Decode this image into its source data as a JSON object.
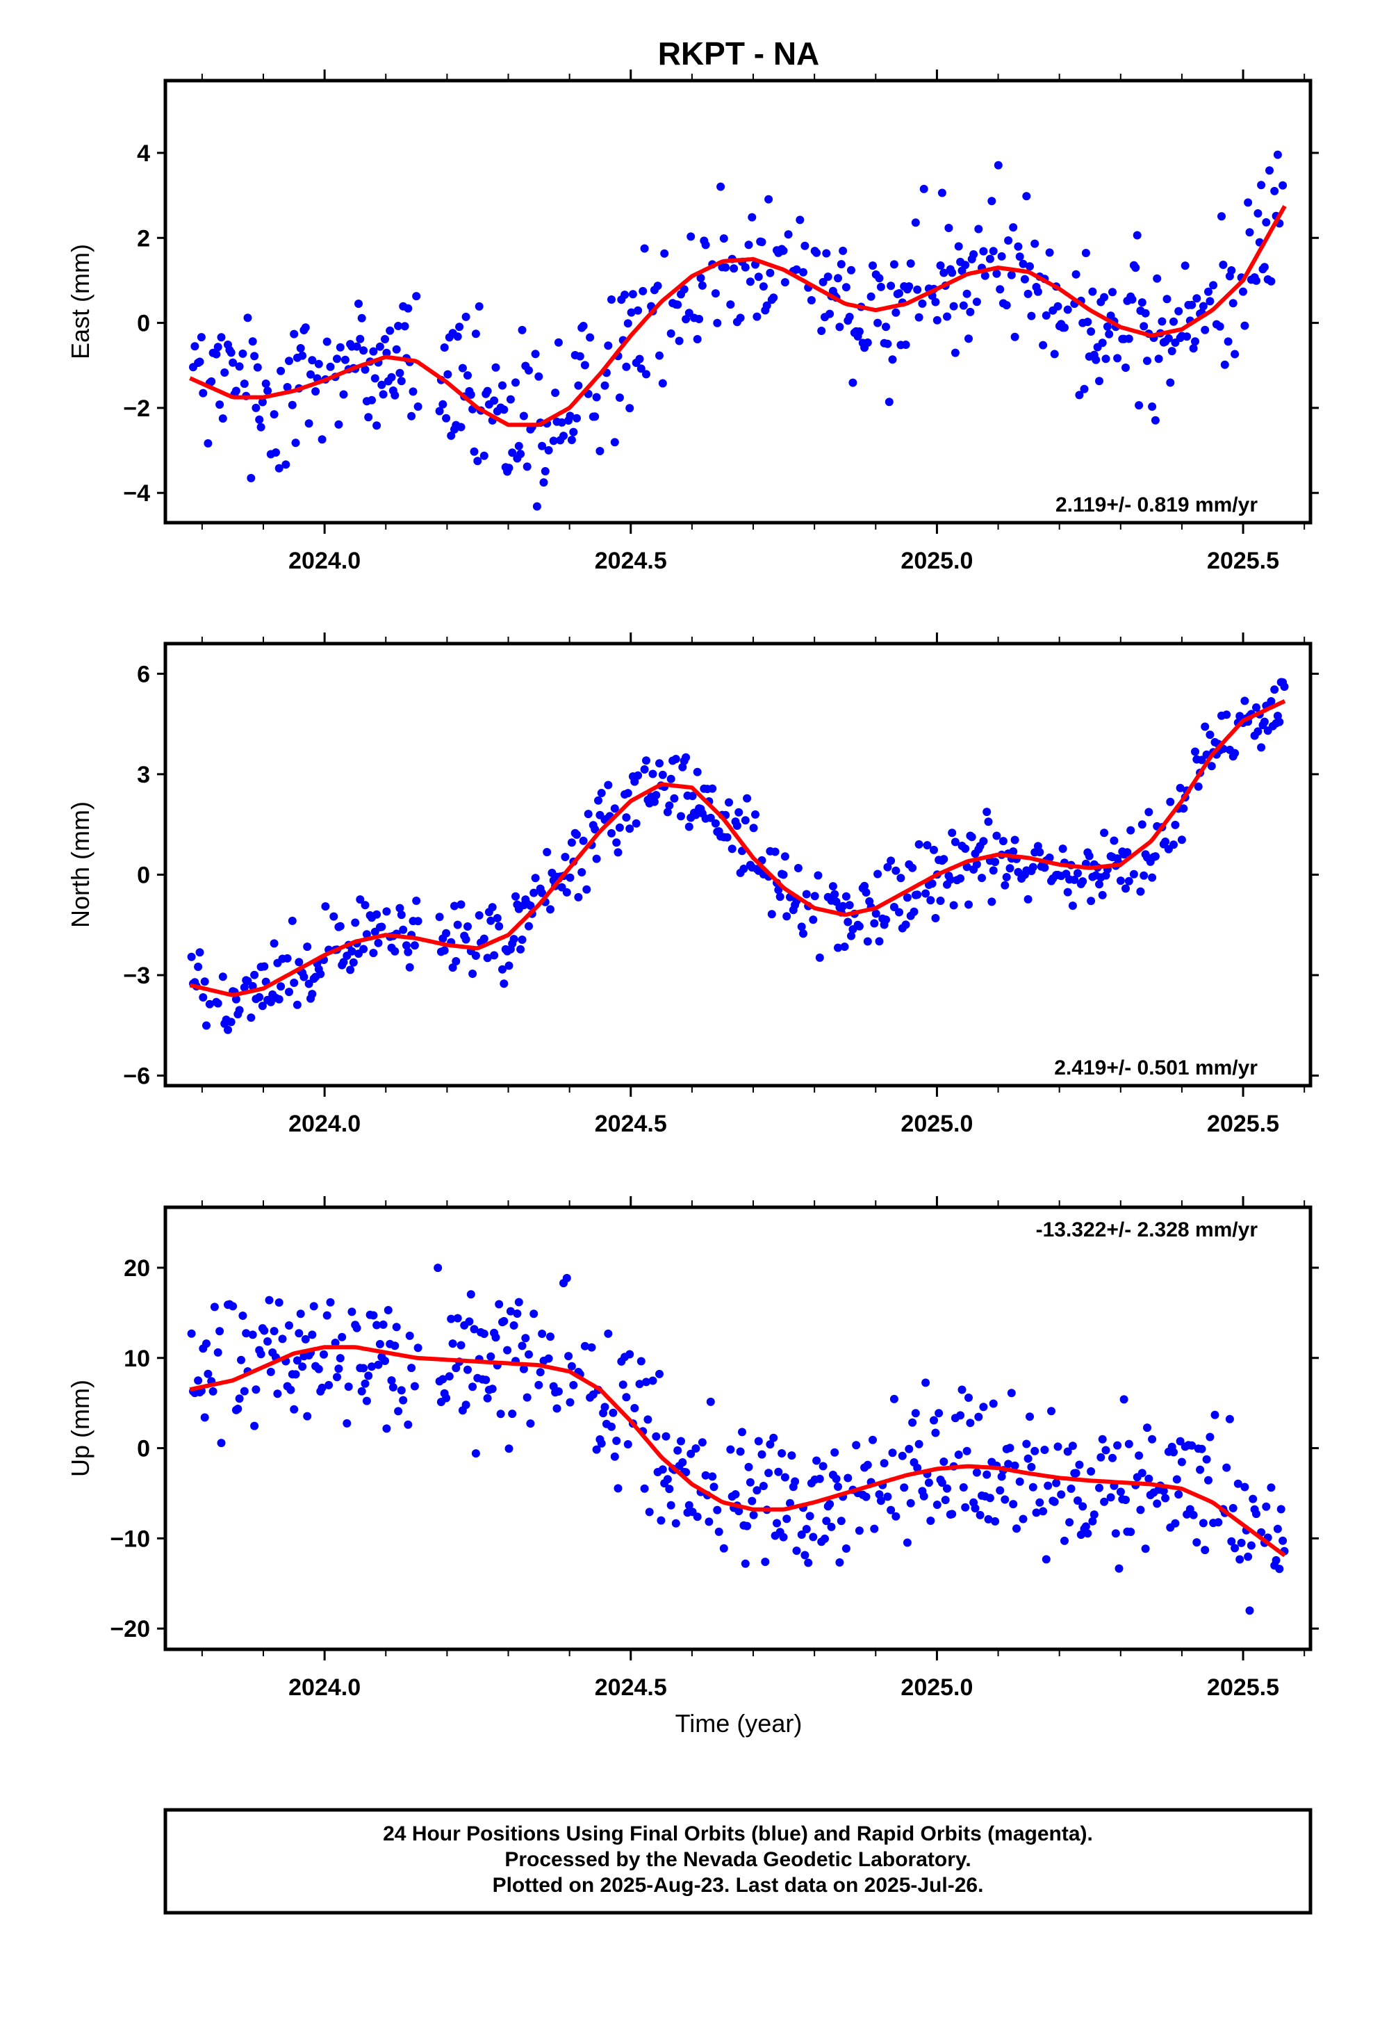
{
  "title": "RKPT - NA",
  "colors": {
    "final_orbits": "#0000ff",
    "fit_curve": "#ff0000",
    "rapid_orbits": "#ff00ff"
  },
  "xaxis": {
    "label": "Time (year)",
    "ticks": [
      "2024.0",
      "2024.5",
      "2025.0",
      "2025.5"
    ]
  },
  "footer": {
    "line1": "24 Hour Positions Using Final Orbits (blue) and Rapid Orbits (magenta).",
    "line2": "Processed by the Nevada Geodetic Laboratory.",
    "line3": "Plotted on 2025-Aug-23. Last data on 2025-Jul-26."
  },
  "chart_data": [
    {
      "type": "scatter",
      "ylabel": "East (mm)",
      "rate_text": "2.119+/- 0.819 mm/yr",
      "xlim": [
        2023.74,
        2025.61
      ],
      "ylim": [
        -4.7,
        5.7
      ],
      "ytick_values": [
        -4,
        -2,
        0,
        2,
        4
      ],
      "ytick_labels": [
        "−4",
        "−2",
        "0",
        "2",
        "4"
      ],
      "xtick_values": [
        2024.0,
        2024.5,
        2025.0,
        2025.5
      ],
      "data_range": [
        2023.78,
        2025.57
      ],
      "noise": 1.1,
      "fit_curve": {
        "x": [
          2023.78,
          2023.85,
          2023.9,
          2023.95,
          2024.0,
          2024.05,
          2024.1,
          2024.15,
          2024.2,
          2024.25,
          2024.3,
          2024.35,
          2024.4,
          2024.45,
          2024.5,
          2024.55,
          2024.6,
          2024.65,
          2024.7,
          2024.75,
          2024.8,
          2024.85,
          2024.9,
          2024.95,
          2025.0,
          2025.05,
          2025.1,
          2025.15,
          2025.2,
          2025.25,
          2025.3,
          2025.35,
          2025.4,
          2025.45,
          2025.5,
          2025.57
        ],
        "y": [
          -1.3,
          -1.75,
          -1.75,
          -1.6,
          -1.35,
          -1.05,
          -0.8,
          -0.9,
          -1.4,
          -2.0,
          -2.4,
          -2.4,
          -2.0,
          -1.2,
          -0.3,
          0.5,
          1.1,
          1.45,
          1.5,
          1.25,
          0.85,
          0.45,
          0.3,
          0.45,
          0.8,
          1.15,
          1.3,
          1.2,
          0.8,
          0.3,
          -0.1,
          -0.3,
          -0.15,
          0.3,
          1.0,
          2.8
        ]
      }
    },
    {
      "type": "scatter",
      "ylabel": "North (mm)",
      "rate_text": "2.419+/- 0.501 mm/yr",
      "xlim": [
        2023.74,
        2025.61
      ],
      "ylim": [
        -6.3,
        6.9
      ],
      "ytick_values": [
        -6,
        -3,
        0,
        3,
        6
      ],
      "ytick_labels": [
        "−6",
        "−3",
        "0",
        "3",
        "6"
      ],
      "xtick_values": [
        2024.0,
        2024.5,
        2025.0,
        2025.5
      ],
      "data_range": [
        2023.78,
        2025.57
      ],
      "noise": 0.75,
      "fit_curve": {
        "x": [
          2023.78,
          2023.85,
          2023.9,
          2023.95,
          2024.0,
          2024.05,
          2024.1,
          2024.15,
          2024.2,
          2024.25,
          2024.3,
          2024.35,
          2024.4,
          2024.45,
          2024.5,
          2024.55,
          2024.6,
          2024.65,
          2024.7,
          2024.75,
          2024.8,
          2024.85,
          2024.9,
          2024.95,
          2025.0,
          2025.05,
          2025.1,
          2025.15,
          2025.2,
          2025.25,
          2025.3,
          2025.35,
          2025.4,
          2025.45,
          2025.5,
          2025.57
        ],
        "y": [
          -3.3,
          -3.6,
          -3.4,
          -2.9,
          -2.4,
          -2.0,
          -1.8,
          -1.9,
          -2.1,
          -2.2,
          -1.8,
          -0.9,
          0.2,
          1.3,
          2.2,
          2.7,
          2.6,
          1.7,
          0.5,
          -0.4,
          -1.0,
          -1.2,
          -1.0,
          -0.5,
          0.0,
          0.4,
          0.6,
          0.5,
          0.3,
          0.2,
          0.3,
          1.0,
          2.2,
          3.6,
          4.6,
          5.2
        ]
      }
    },
    {
      "type": "scatter",
      "ylabel": "Up (mm)",
      "rate_text": "-13.322+/- 2.328 mm/yr",
      "xlim": [
        2023.74,
        2025.61
      ],
      "ylim": [
        -22.3,
        26.7
      ],
      "ytick_values": [
        -20,
        -10,
        0,
        10,
        20
      ],
      "ytick_labels": [
        "−20",
        "−10",
        "0",
        "10",
        "20"
      ],
      "xtick_values": [
        2024.0,
        2024.5,
        2025.0,
        2025.5
      ],
      "data_range": [
        2023.78,
        2025.57
      ],
      "noise": 4.8,
      "fit_curve": {
        "x": [
          2023.78,
          2023.85,
          2023.9,
          2023.95,
          2024.0,
          2024.05,
          2024.1,
          2024.15,
          2024.2,
          2024.25,
          2024.3,
          2024.35,
          2024.4,
          2024.45,
          2024.5,
          2024.55,
          2024.6,
          2024.65,
          2024.7,
          2024.75,
          2024.8,
          2024.85,
          2024.9,
          2024.95,
          2025.0,
          2025.05,
          2025.1,
          2025.15,
          2025.2,
          2025.25,
          2025.3,
          2025.35,
          2025.4,
          2025.45,
          2025.5,
          2025.57
        ],
        "y": [
          6.5,
          7.5,
          9.0,
          10.5,
          11.2,
          11.2,
          10.6,
          10.0,
          9.8,
          9.6,
          9.4,
          9.2,
          8.5,
          6.5,
          3.0,
          -1.0,
          -4.0,
          -6.0,
          -6.8,
          -6.8,
          -6.0,
          -5.0,
          -4.0,
          -3.0,
          -2.3,
          -2.0,
          -2.2,
          -2.8,
          -3.3,
          -3.6,
          -3.8,
          -4.0,
          -4.5,
          -6.0,
          -8.5,
          -12.0
        ]
      }
    }
  ]
}
